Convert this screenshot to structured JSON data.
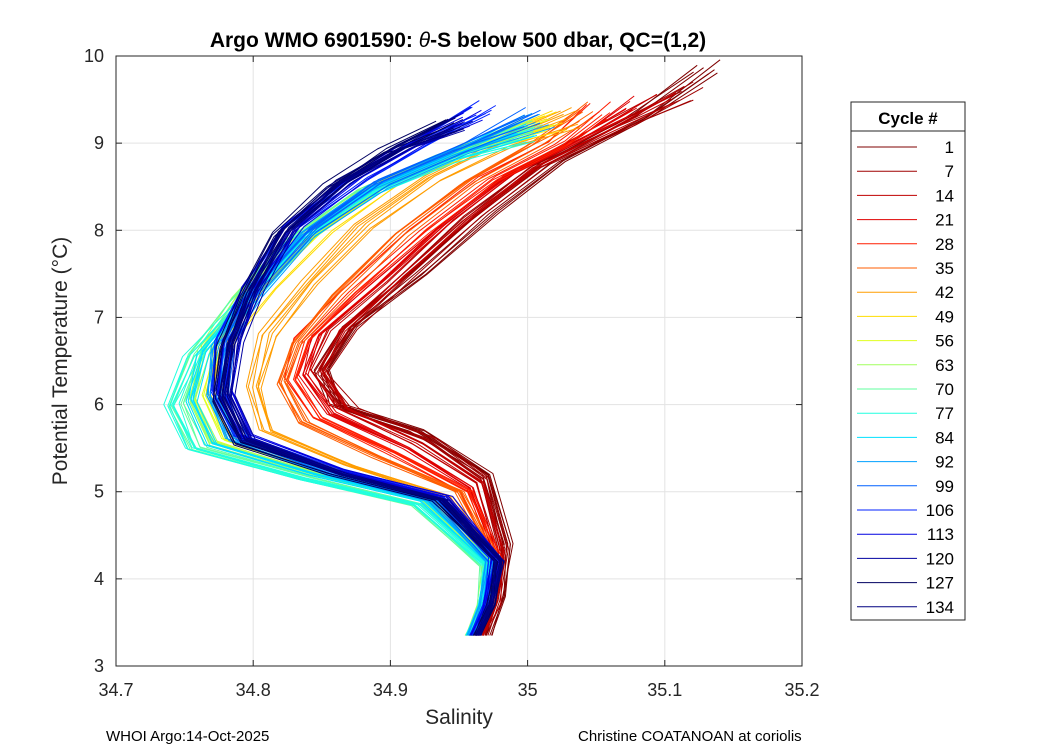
{
  "chart_data": {
    "type": "line",
    "title_prefix": "Argo WMO 6901590: ",
    "title_theta": "θ",
    "title_suffix": "-S below 500 dbar,  QC=(1,2)",
    "xlabel": "Salinity",
    "ylabel": "Potential Temperature (°C)",
    "xlim": [
      34.7,
      35.2
    ],
    "ylim": [
      3,
      10
    ],
    "xticks": [
      "34.7",
      "34.8",
      "34.9",
      "35",
      "35.1",
      "35.2"
    ],
    "yticks": [
      "3",
      "4",
      "5",
      "6",
      "7",
      "8",
      "9",
      "10"
    ],
    "grid": true,
    "legend_title": "Cycle #",
    "legend_position": "right-outside",
    "series": [
      {
        "name": "1",
        "color": "#7f0000",
        "salinity": [
          35.13,
          35.08,
          35.02,
          34.97,
          34.92,
          34.87,
          34.85,
          34.86,
          34.92,
          34.97,
          34.985,
          34.98,
          34.97
        ],
        "theta": [
          9.85,
          9.3,
          8.8,
          8.2,
          7.5,
          6.9,
          6.4,
          6.0,
          5.7,
          5.2,
          4.4,
          3.8,
          3.35
        ]
      },
      {
        "name": "7",
        "color": "#9f0000",
        "salinity": [
          35.12,
          35.07,
          35.01,
          34.96,
          34.91,
          34.87,
          34.85,
          34.87,
          34.93,
          34.97,
          34.983,
          34.978,
          34.968
        ],
        "theta": [
          9.6,
          9.2,
          8.75,
          8.15,
          7.45,
          6.85,
          6.35,
          5.95,
          5.6,
          5.15,
          4.35,
          3.75,
          3.35
        ]
      },
      {
        "name": "14",
        "color": "#bf0000",
        "salinity": [
          35.1,
          35.05,
          35.0,
          34.95,
          34.9,
          34.86,
          34.845,
          34.865,
          34.92,
          34.965,
          34.98,
          34.976,
          34.965
        ],
        "theta": [
          9.5,
          9.1,
          8.7,
          8.1,
          7.4,
          6.85,
          6.4,
          5.95,
          5.55,
          5.1,
          4.3,
          3.7,
          3.35
        ]
      },
      {
        "name": "21",
        "color": "#df0000",
        "salinity": [
          35.08,
          35.04,
          34.99,
          34.94,
          34.89,
          34.85,
          34.84,
          34.86,
          34.915,
          34.96,
          34.978,
          34.974,
          34.963
        ],
        "theta": [
          9.45,
          9.05,
          8.65,
          8.05,
          7.35,
          6.8,
          6.35,
          5.9,
          5.5,
          5.05,
          4.3,
          3.7,
          3.35
        ]
      },
      {
        "name": "28",
        "color": "#ff1d00",
        "salinity": [
          35.05,
          35.02,
          34.97,
          34.92,
          34.87,
          34.835,
          34.825,
          34.845,
          34.9,
          34.955,
          34.976,
          34.972,
          34.962
        ],
        "theta": [
          9.4,
          9.0,
          8.6,
          8.0,
          7.3,
          6.75,
          6.3,
          5.85,
          5.45,
          5.0,
          4.25,
          3.7,
          3.35
        ]
      },
      {
        "name": "35",
        "color": "#ff5d00",
        "salinity": [
          35.04,
          35.0,
          34.955,
          34.905,
          34.86,
          34.83,
          34.82,
          34.835,
          34.89,
          34.95,
          34.975,
          34.971,
          34.961
        ],
        "theta": [
          9.35,
          8.95,
          8.55,
          7.95,
          7.25,
          6.7,
          6.25,
          5.8,
          5.4,
          5.0,
          4.25,
          3.7,
          3.35
        ]
      },
      {
        "name": "42",
        "color": "#ff9d00",
        "salinity": [
          35.03,
          34.98,
          34.93,
          34.88,
          34.84,
          34.81,
          34.8,
          34.81,
          34.87,
          34.94,
          34.973,
          34.97,
          34.96
        ],
        "theta": [
          9.3,
          9.0,
          8.6,
          8.05,
          7.4,
          6.8,
          6.2,
          5.7,
          5.3,
          4.95,
          4.25,
          3.7,
          3.35
        ]
      },
      {
        "name": "49",
        "color": "#ffdd00",
        "salinity": [
          35.02,
          34.96,
          34.9,
          34.85,
          34.81,
          34.78,
          34.77,
          34.785,
          34.86,
          34.935,
          34.972,
          34.969,
          34.959
        ],
        "theta": [
          9.25,
          8.95,
          8.55,
          8.0,
          7.35,
          6.75,
          6.15,
          5.65,
          5.25,
          4.95,
          4.25,
          3.7,
          3.35
        ]
      },
      {
        "name": "56",
        "color": "#e1ff1f",
        "salinity": [
          35.01,
          34.95,
          34.89,
          34.84,
          34.8,
          34.77,
          34.76,
          34.775,
          34.85,
          34.93,
          34.971,
          34.968,
          34.958
        ],
        "theta": [
          9.2,
          8.9,
          8.5,
          7.95,
          7.3,
          6.7,
          6.1,
          5.6,
          5.2,
          4.9,
          4.2,
          3.7,
          3.35
        ]
      },
      {
        "name": "63",
        "color": "#a1ff5f",
        "salinity": [
          35.0,
          34.94,
          34.88,
          34.83,
          34.79,
          34.765,
          34.755,
          34.77,
          34.845,
          34.925,
          34.97,
          34.967,
          34.957
        ],
        "theta": [
          9.2,
          8.85,
          8.45,
          7.9,
          7.25,
          6.65,
          6.05,
          5.55,
          5.2,
          4.9,
          4.2,
          3.7,
          3.35
        ]
      },
      {
        "name": "70",
        "color": "#61ff9f",
        "salinity": [
          35.0,
          34.94,
          34.88,
          34.83,
          34.79,
          34.76,
          34.745,
          34.76,
          34.84,
          34.92,
          34.97,
          34.967,
          34.957
        ],
        "theta": [
          9.15,
          8.85,
          8.45,
          7.9,
          7.2,
          6.6,
          6.0,
          5.5,
          5.15,
          4.85,
          4.15,
          3.7,
          3.35
        ]
      },
      {
        "name": "77",
        "color": "#21ffdf",
        "salinity": [
          35.0,
          34.94,
          34.88,
          34.83,
          34.79,
          34.755,
          34.74,
          34.755,
          34.835,
          34.92,
          34.97,
          34.967,
          34.957
        ],
        "theta": [
          9.1,
          8.8,
          8.4,
          7.85,
          7.15,
          6.55,
          6.0,
          5.5,
          5.15,
          4.85,
          4.15,
          3.7,
          3.35
        ]
      },
      {
        "name": "84",
        "color": "#00e1ff",
        "salinity": [
          35.0,
          34.945,
          34.885,
          34.835,
          34.795,
          34.765,
          34.755,
          34.77,
          34.845,
          34.925,
          34.972,
          34.968,
          34.958
        ],
        "theta": [
          9.2,
          8.85,
          8.45,
          7.9,
          7.2,
          6.6,
          6.05,
          5.55,
          5.2,
          4.9,
          4.2,
          3.7,
          3.35
        ]
      },
      {
        "name": "92",
        "color": "#00a1ff",
        "salinity": [
          35.01,
          34.95,
          34.89,
          34.84,
          34.8,
          34.775,
          34.77,
          34.785,
          34.855,
          34.93,
          34.973,
          34.969,
          34.959
        ],
        "theta": [
          9.25,
          8.9,
          8.5,
          7.95,
          7.25,
          6.65,
          6.1,
          5.6,
          5.2,
          4.9,
          4.2,
          3.7,
          3.35
        ]
      },
      {
        "name": "99",
        "color": "#0061ff",
        "salinity": [
          35.0,
          34.95,
          34.89,
          34.84,
          34.8,
          34.78,
          34.775,
          34.79,
          34.86,
          34.935,
          34.975,
          34.97,
          34.96
        ],
        "theta": [
          9.3,
          8.95,
          8.55,
          8.0,
          7.3,
          6.7,
          6.1,
          5.6,
          5.2,
          4.9,
          4.2,
          3.7,
          3.35
        ]
      },
      {
        "name": "106",
        "color": "#0021ff",
        "salinity": [
          34.97,
          34.93,
          34.88,
          34.83,
          34.8,
          34.78,
          34.775,
          34.79,
          34.86,
          34.935,
          34.976,
          34.971,
          34.961
        ],
        "theta": [
          9.4,
          9.05,
          8.6,
          8.05,
          7.35,
          6.75,
          6.15,
          5.65,
          5.25,
          4.95,
          4.25,
          3.7,
          3.35
        ]
      },
      {
        "name": "113",
        "color": "#0000e1",
        "salinity": [
          34.96,
          34.92,
          34.875,
          34.83,
          34.8,
          34.785,
          34.78,
          34.795,
          34.865,
          34.94,
          34.978,
          34.972,
          34.962
        ],
        "theta": [
          9.3,
          9.0,
          8.6,
          8.05,
          7.35,
          6.75,
          6.15,
          5.65,
          5.25,
          4.95,
          4.25,
          3.7,
          3.35
        ]
      },
      {
        "name": "120",
        "color": "#0000a1",
        "salinity": [
          34.95,
          34.91,
          34.865,
          34.825,
          34.8,
          34.785,
          34.78,
          34.795,
          34.865,
          34.94,
          34.979,
          34.973,
          34.963
        ],
        "theta": [
          9.2,
          8.95,
          8.55,
          8.0,
          7.3,
          6.7,
          6.1,
          5.6,
          5.2,
          4.9,
          4.2,
          3.7,
          3.35
        ]
      },
      {
        "name": "127",
        "color": "#000061",
        "salinity": [
          34.94,
          34.9,
          34.86,
          34.82,
          34.795,
          34.78,
          34.775,
          34.79,
          34.86,
          34.935,
          34.98,
          34.974,
          34.964
        ],
        "theta": [
          9.15,
          8.9,
          8.5,
          7.95,
          7.25,
          6.65,
          6.05,
          5.55,
          5.2,
          4.9,
          4.2,
          3.7,
          3.35
        ]
      },
      {
        "name": "134",
        "color": "#000080",
        "salinity": [
          34.95,
          34.91,
          34.865,
          34.825,
          34.8,
          34.785,
          34.78,
          34.795,
          34.865,
          34.94,
          34.98,
          34.975,
          34.965
        ],
        "theta": [
          9.2,
          8.95,
          8.55,
          8.0,
          7.3,
          6.7,
          6.1,
          5.6,
          5.2,
          4.9,
          4.2,
          3.7,
          3.35
        ]
      }
    ]
  },
  "footer": {
    "left": "WHOI Argo:14-Oct-2025",
    "right": "Christine COATANOAN at coriolis"
  }
}
